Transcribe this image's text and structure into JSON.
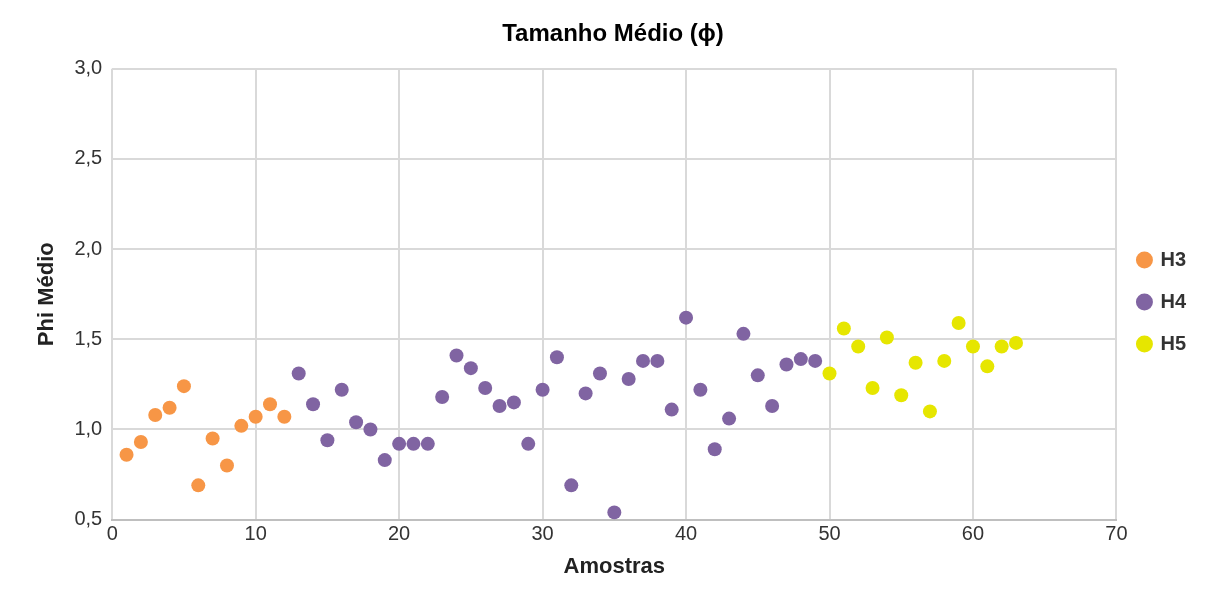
{
  "chart_data": {
    "type": "scatter",
    "title": "Tamanho Médio (ϕ)",
    "xlabel": "Amostras",
    "ylabel": "Phi Médio",
    "xlim": [
      0,
      70
    ],
    "xticks": [
      0,
      10,
      20,
      30,
      40,
      50,
      60,
      70
    ],
    "ylim": [
      0.5,
      3.0
    ],
    "yticks": [
      {
        "value": 0.5,
        "label": "0,5"
      },
      {
        "value": 1.0,
        "label": "1,0"
      },
      {
        "value": 1.5,
        "label": "1,5"
      },
      {
        "value": 2.0,
        "label": "2,0"
      },
      {
        "value": 2.5,
        "label": "2,5"
      },
      {
        "value": 3.0,
        "label": "3,0"
      }
    ],
    "grid": true,
    "legend": "right",
    "marker": "circle",
    "series": [
      {
        "name": "H3",
        "color": "#f79646",
        "x": [
          1,
          2,
          3,
          4,
          5,
          6,
          7,
          8,
          9,
          10,
          11,
          12
        ],
        "values": [
          0.86,
          0.93,
          1.08,
          1.12,
          1.24,
          0.69,
          0.95,
          0.8,
          1.02,
          1.07,
          1.14,
          1.07
        ]
      },
      {
        "name": "H4",
        "color": "#8064a2",
        "x": [
          13,
          14,
          15,
          16,
          17,
          18,
          19,
          20,
          21,
          22,
          23,
          24,
          25,
          26,
          27,
          28,
          29,
          30,
          31,
          32,
          33,
          34,
          35,
          36,
          37,
          38,
          39,
          40,
          41,
          42,
          43,
          44,
          45,
          46,
          47,
          48,
          49
        ],
        "values": [
          1.31,
          1.14,
          0.94,
          1.22,
          1.04,
          1.0,
          0.83,
          0.92,
          0.92,
          0.92,
          1.18,
          1.41,
          1.34,
          1.23,
          1.13,
          1.15,
          0.92,
          1.22,
          1.4,
          0.69,
          1.2,
          1.31,
          0.54,
          1.28,
          1.38,
          1.38,
          1.11,
          1.62,
          1.22,
          0.89,
          1.06,
          1.53,
          1.3,
          1.13,
          1.36,
          1.39,
          1.38
        ]
      },
      {
        "name": "H5",
        "color": "#e6e600",
        "x": [
          50,
          51,
          52,
          53,
          54,
          55,
          56,
          57,
          58,
          59,
          60,
          61,
          62,
          63
        ],
        "values": [
          1.31,
          1.56,
          1.46,
          1.23,
          1.51,
          1.19,
          1.37,
          1.1,
          1.38,
          1.59,
          1.46,
          1.35,
          1.46,
          1.48
        ]
      }
    ]
  }
}
